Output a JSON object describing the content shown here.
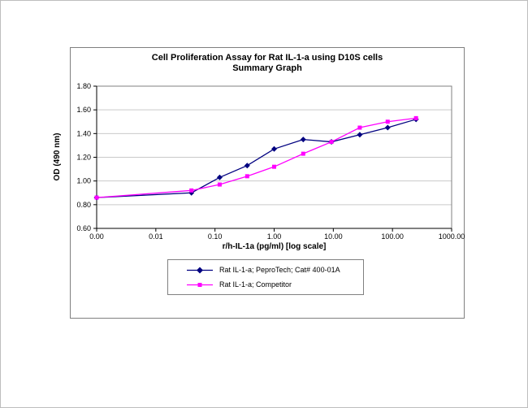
{
  "chart_data": {
    "type": "line",
    "title_line1": "Cell Proliferation Assay for Rat IL-1-a using D10S cells",
    "title_line2": "Summary Graph",
    "xlabel": "r/h-IL-1a (pg/ml) [log scale]",
    "ylabel": "OD (490 nm)",
    "x_scale": "log",
    "xlog_min": -3,
    "xlog_max": 3,
    "x_tick_labels": [
      "0.00",
      "0.01",
      "0.10",
      "1.00",
      "10.00",
      "100.00",
      "1000.00"
    ],
    "y_ticks": [
      0.6,
      0.8,
      1.0,
      1.2,
      1.4,
      1.6,
      1.8
    ],
    "y_tick_labels": [
      "0.60",
      "0.80",
      "1.00",
      "1.20",
      "1.40",
      "1.60",
      "1.80"
    ],
    "ylim": [
      0.6,
      1.8
    ],
    "grid": "horizontal",
    "gridline_color": "#c9c9c9",
    "axis_color": "#808080",
    "x": [
      0,
      0.04,
      0.12,
      0.35,
      1.0,
      3.1,
      9.3,
      28,
      83,
      250
    ],
    "series": [
      {
        "name": "Rat IL-1-a; PeproTech; Cat# 400-01A",
        "color": "#000080",
        "marker": "diamond",
        "values": [
          0.86,
          0.9,
          1.03,
          1.13,
          1.27,
          1.35,
          1.33,
          1.39,
          1.45,
          1.52
        ]
      },
      {
        "name": "Rat IL-1-a; Competitor",
        "color": "#ff00ff",
        "marker": "square",
        "values": [
          0.86,
          0.92,
          0.97,
          1.04,
          1.12,
          1.23,
          1.33,
          1.45,
          1.5,
          1.53
        ]
      }
    ],
    "legend_position": "bottom-center"
  }
}
